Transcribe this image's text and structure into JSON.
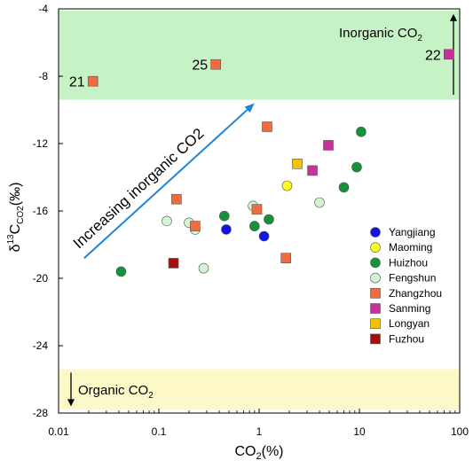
{
  "chart_data": {
    "type": "scatter",
    "xlabel": "CO",
    "xlabel_sub": "2",
    "xlabel_suffix": "(%)",
    "ylabel_prefix": "δ",
    "ylabel_sup": "13",
    "ylabel_main": "C",
    "ylabel_sub": "CO2",
    "ylabel_suffix": "(‰)",
    "x_scale": "log",
    "xlim": [
      0.01,
      100
    ],
    "ylim": [
      -28,
      -4
    ],
    "x_ticks": [
      0.01,
      0.1,
      1,
      10,
      100
    ],
    "x_tick_labels": [
      "0.01",
      "0.1",
      "1",
      "10",
      "100"
    ],
    "y_ticks": [
      -4,
      -8,
      -12,
      -16,
      -20,
      -24,
      -28
    ],
    "y_tick_labels": [
      "-4",
      "-8",
      "-12",
      "-16",
      "-20",
      "-24",
      "-28"
    ],
    "grid": false,
    "legend_position": "right",
    "bands": [
      {
        "name": "inorganic-band",
        "y_range": [
          -9.4,
          -4.1
        ],
        "color": "#c6f2c6",
        "label": "Inorganic CO",
        "label_sub": "2",
        "arrow": "up"
      },
      {
        "name": "organic-band",
        "y_range": [
          -27.8,
          -25.4
        ],
        "color": "#fcf8c8",
        "label": "Organic CO",
        "label_sub": "2",
        "arrow": "down"
      }
    ],
    "trend": {
      "text": "Increasing inorganic CO2",
      "color": "#1f85d6",
      "from": [
        0.018,
        -18.8
      ],
      "to": [
        0.9,
        -9.6
      ]
    },
    "point_labels": [
      {
        "text": "21",
        "x": 0.022,
        "y": -8.3,
        "anchor": "end"
      },
      {
        "text": "25",
        "x": 0.37,
        "y": -7.3,
        "anchor": "end"
      },
      {
        "text": "22",
        "x": 78,
        "y": -6.7,
        "anchor": "end"
      }
    ],
    "series": [
      {
        "name": "Yangjiang",
        "marker": "circle",
        "color": "#1414e6",
        "points": [
          [
            0.47,
            -17.1
          ],
          [
            1.12,
            -17.5
          ]
        ]
      },
      {
        "name": "Maoming",
        "marker": "circle",
        "color": "#ffff1e",
        "points": [
          [
            1.9,
            -14.5
          ]
        ]
      },
      {
        "name": "Huizhou",
        "marker": "circle",
        "color": "#14923c",
        "points": [
          [
            0.042,
            -19.6
          ],
          [
            0.45,
            -16.3
          ],
          [
            0.9,
            -16.9
          ],
          [
            1.25,
            -16.5
          ],
          [
            7.0,
            -14.6
          ],
          [
            9.4,
            -13.4
          ],
          [
            10.4,
            -11.3
          ]
        ]
      },
      {
        "name": "Fengshun",
        "marker": "circle",
        "color": "#d3f5d3",
        "points": [
          [
            0.12,
            -16.6
          ],
          [
            0.2,
            -16.7
          ],
          [
            0.28,
            -19.4
          ],
          [
            0.23,
            -17.1
          ],
          [
            0.87,
            -15.7
          ],
          [
            4.0,
            -15.5
          ]
        ]
      },
      {
        "name": "Zhangzhou",
        "marker": "square",
        "color": "#f26b3a",
        "points": [
          [
            0.022,
            -8.3
          ],
          [
            0.37,
            -7.3
          ],
          [
            0.15,
            -15.3
          ],
          [
            0.23,
            -16.9
          ],
          [
            0.95,
            -15.9
          ],
          [
            1.2,
            -11.0
          ],
          [
            1.85,
            -18.8
          ]
        ]
      },
      {
        "name": "Sanming",
        "marker": "square",
        "color": "#c8309a",
        "points": [
          [
            3.4,
            -13.6
          ],
          [
            4.9,
            -12.1
          ],
          [
            78,
            -6.7
          ]
        ]
      },
      {
        "name": "Longyan",
        "marker": "square",
        "color": "#f5c200",
        "points": [
          [
            2.4,
            -13.2
          ]
        ]
      },
      {
        "name": "Fuzhou",
        "marker": "square",
        "color": "#a50f0f",
        "points": [
          [
            0.14,
            -19.1
          ]
        ]
      }
    ]
  }
}
